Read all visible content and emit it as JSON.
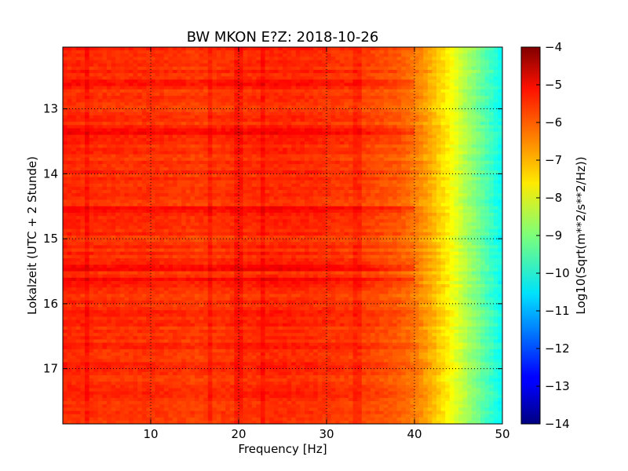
{
  "chart_data": {
    "type": "heatmap",
    "title": "BW MKON E?Z: 2018-10-26",
    "xlabel": "Frequency [Hz]",
    "ylabel": "Lokalzeit (UTC + 2 Stunde)",
    "xlim": [
      0,
      50
    ],
    "ylim": [
      17.85,
      12.05
    ],
    "x_ticks": [
      10,
      20,
      30,
      40,
      50
    ],
    "x_tick_labels": [
      "10",
      "20",
      "30",
      "40",
      "50"
    ],
    "y_ticks": [
      13,
      14,
      15,
      16,
      17
    ],
    "y_tick_labels": [
      "13",
      "14",
      "15",
      "16",
      "17"
    ],
    "grid": true,
    "colorbar": {
      "label": "Log10(Sqrt(m**2/s**2/Hz))",
      "colormap": "jet",
      "range": [
        -14,
        -4
      ],
      "ticks": [
        -4,
        -5,
        -6,
        -7,
        -8,
        -9,
        -10,
        -11,
        -12,
        -13,
        -14
      ],
      "tick_labels": [
        "−4",
        "−5",
        "−6",
        "−7",
        "−8",
        "−9",
        "−10",
        "−11",
        "−12",
        "−13",
        "−14"
      ]
    },
    "frequency_profile": {
      "frequency_hz": [
        0,
        5,
        10,
        15,
        20,
        25,
        30,
        35,
        38,
        40,
        42,
        44,
        46,
        48,
        50
      ],
      "log10_amplitude": [
        -5.6,
        -5.7,
        -5.7,
        -5.8,
        -5.7,
        -5.6,
        -5.7,
        -5.9,
        -6.1,
        -6.4,
        -7.0,
        -7.7,
        -8.6,
        -9.4,
        -10.2
      ]
    },
    "strong_bands_hours": [
      12.6,
      13.35,
      14.55,
      15.45,
      15.65
    ],
    "strong_lines_hz": [
      2.8,
      16.7,
      20.0,
      22.7,
      33.5
    ]
  }
}
